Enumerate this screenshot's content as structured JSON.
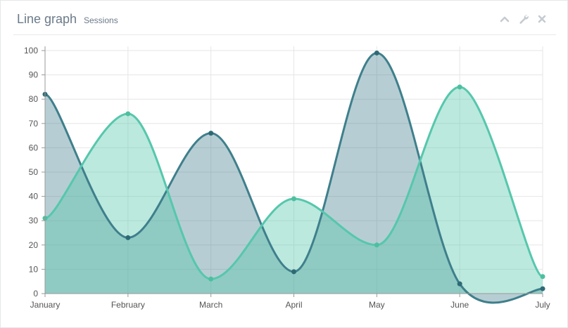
{
  "panel": {
    "title": "Line graph",
    "subtitle": "Sessions",
    "tools": [
      {
        "icon": "chevron-up-icon"
      },
      {
        "icon": "wrench-icon"
      },
      {
        "icon": "close-icon"
      }
    ]
  },
  "colors": {
    "series1_line": "#3f7f8c",
    "series1_fill": "rgba(63,127,140,0.38)",
    "series1_point": "#2e6a76",
    "series2_line": "#56c7ac",
    "series2_fill": "rgba(86,199,172,0.40)",
    "series2_point": "#4dbf9f",
    "title_text": "#6b7a89"
  },
  "chart_data": {
    "type": "area",
    "categories": [
      "January",
      "February",
      "March",
      "April",
      "May",
      "June",
      "July"
    ],
    "series": [
      {
        "values": [
          82,
          23,
          66,
          9,
          99,
          4,
          2
        ]
      },
      {
        "values": [
          31,
          74,
          6,
          39,
          20,
          85,
          7
        ]
      }
    ],
    "ylim": [
      0,
      100
    ],
    "yticks": [
      0,
      10,
      20,
      30,
      40,
      50,
      60,
      70,
      80,
      90,
      100
    ],
    "grid": true,
    "smooth": true
  }
}
